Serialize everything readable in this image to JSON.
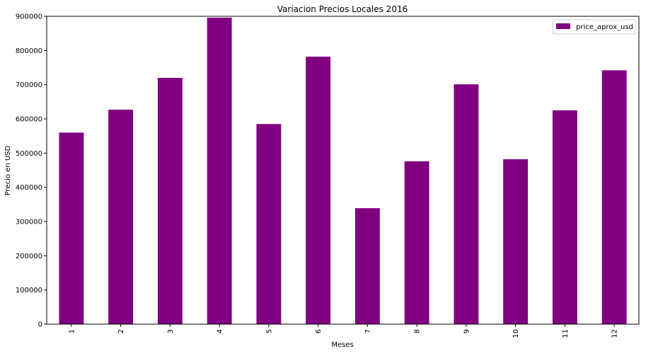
{
  "chart_data": {
    "type": "bar",
    "title": "Variacion Precios Locales 2016",
    "xlabel": "Meses",
    "ylabel": "Precio en USD",
    "categories": [
      "1",
      "2",
      "3",
      "4",
      "5",
      "6",
      "7",
      "8",
      "9",
      "10",
      "11",
      "12"
    ],
    "series": [
      {
        "name": "price_aprox_usd",
        "color": "#800080",
        "values": [
          560000,
          627000,
          720000,
          896000,
          585000,
          782000,
          339000,
          476000,
          701000,
          482000,
          625000,
          742000
        ]
      }
    ],
    "ylim": [
      0,
      900000
    ],
    "yticks": [
      0,
      100000,
      200000,
      300000,
      400000,
      500000,
      600000,
      700000,
      800000,
      900000
    ],
    "ytick_labels": [
      "0",
      "100000",
      "200000",
      "300000",
      "400000",
      "500000",
      "600000",
      "700000",
      "800000",
      "900000"
    ],
    "grid": false,
    "legend_position": "top-right",
    "x_tick_rotation": "vertical"
  }
}
